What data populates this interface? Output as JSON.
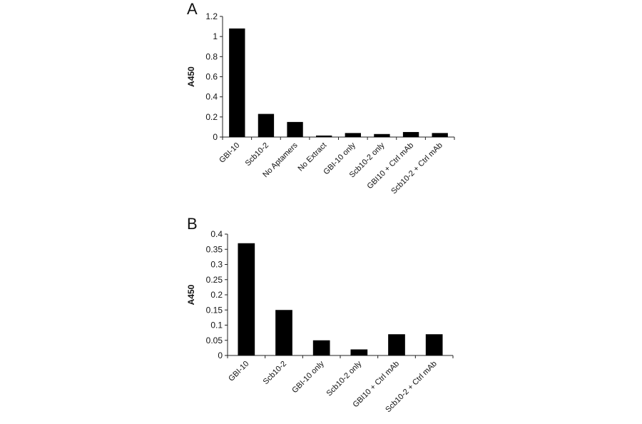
{
  "chart_data": [
    {
      "type": "bar",
      "panel_label": "A",
      "title": "",
      "xlabel": "",
      "ylabel": "A450",
      "ylim": [
        0,
        1.2
      ],
      "yticks": [
        "0",
        "0.2",
        "0.4",
        "0.6",
        "0.8",
        "1",
        "1.2"
      ],
      "categories": [
        "GBI-10",
        "Scb10-2",
        "No Aptamers",
        "No Extract",
        "GBI-10 only",
        "Scb10-2 only",
        "GBI10 + Ctrl mAb",
        "Scb10-2 + Ctrl mAb"
      ],
      "values": [
        1.08,
        0.23,
        0.15,
        0.015,
        0.04,
        0.03,
        0.05,
        0.04
      ],
      "grid": false,
      "bar_color": "#000000"
    },
    {
      "type": "bar",
      "panel_label": "B",
      "title": "",
      "xlabel": "",
      "ylabel": "A450",
      "ylim": [
        0,
        0.4
      ],
      "yticks": [
        "0",
        "0.05",
        "0.1",
        "0.15",
        "0.2",
        "0.25",
        "0.3",
        "0.35",
        "0.4"
      ],
      "categories": [
        "GBI-10",
        "Scb10-2",
        "GBI-10 only",
        "Scb10-2 only",
        "GBI10 + Ctrl mAb",
        "Scb10-2 + Ctrl mAb"
      ],
      "values": [
        0.37,
        0.15,
        0.05,
        0.02,
        0.07,
        0.07
      ],
      "grid": false,
      "bar_color": "#000000"
    }
  ]
}
